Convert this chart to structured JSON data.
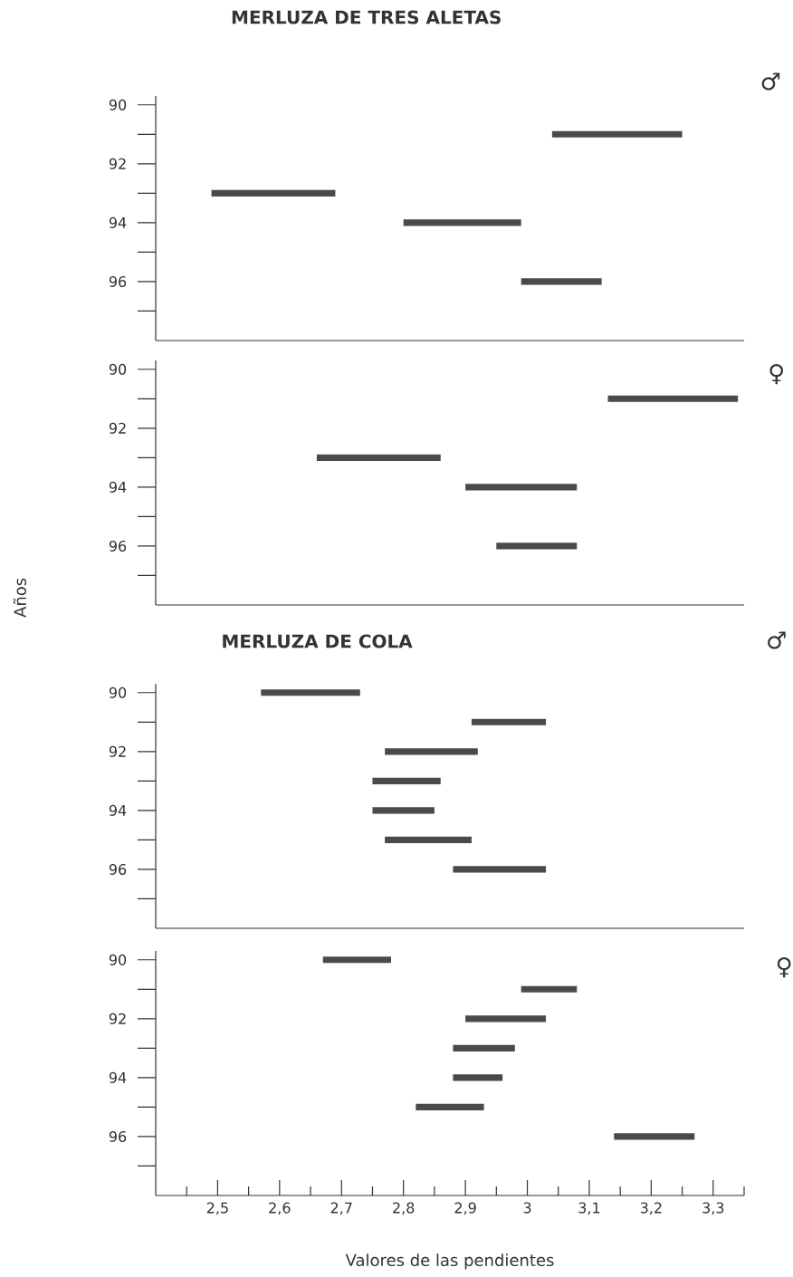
{
  "chart_data": [
    {
      "type": "bar",
      "orientation": "horizontal",
      "title": "MERLUZA DE TRES ALETAS",
      "categories": [
        "90",
        null,
        "92",
        null,
        "94",
        null,
        "96",
        null
      ],
      "base": [
        null,
        3.04,
        null,
        2.49,
        2.8,
        null,
        2.99,
        null
      ],
      "values": [
        null,
        0.21,
        null,
        0.2,
        0.19,
        null,
        0.13,
        null
      ],
      "color": "#4a4a4a",
      "xlim": [
        2.4,
        3.35
      ],
      "tick_labels": "y",
      "annotations": [
        "♂"
      ]
    },
    {
      "type": "bar",
      "orientation": "horizontal",
      "ylabel": "Años",
      "categories": [
        "90",
        null,
        "92",
        null,
        "94",
        null,
        "96",
        null
      ],
      "base": [
        null,
        3.13,
        null,
        2.66,
        2.9,
        null,
        2.95,
        null
      ],
      "values": [
        null,
        0.21,
        null,
        0.2,
        0.18,
        null,
        0.13,
        null
      ],
      "color": "#4a4a4a",
      "xlim": [
        2.4,
        3.35
      ],
      "tick_labels": "y",
      "annotations": [
        "♀"
      ]
    },
    {
      "type": "bar",
      "orientation": "horizontal",
      "title": "MERLUZA DE COLA",
      "categories": [
        "90",
        null,
        "92",
        null,
        "94",
        null,
        "96",
        null
      ],
      "base": [
        2.57,
        2.91,
        2.77,
        2.75,
        2.75,
        2.77,
        2.88,
        null
      ],
      "values": [
        0.16,
        0.12,
        0.15,
        0.11,
        0.1,
        0.14,
        0.15,
        null
      ],
      "color": "#4a4a4a",
      "xlim": [
        2.4,
        3.35
      ],
      "tick_labels": "y",
      "annotations": [
        "♂"
      ]
    },
    {
      "type": "bar",
      "orientation": "horizontal",
      "xlabel": "Valores de las pendientes",
      "categories": [
        "90",
        null,
        "92",
        null,
        "94",
        null,
        "96",
        null
      ],
      "base": [
        2.67,
        2.99,
        2.9,
        2.88,
        2.88,
        2.82,
        3.14,
        null
      ],
      "values": [
        0.11,
        0.09,
        0.13,
        0.1,
        0.08,
        0.11,
        0.13,
        null
      ],
      "color": "#4a4a4a",
      "xlim": [
        2.4,
        3.35
      ],
      "xticks": [
        {
          "value": 2.45,
          "label": null
        },
        {
          "value": 2.5,
          "label": "2,5"
        },
        {
          "value": 2.55,
          "label": null
        },
        {
          "value": 2.6,
          "label": "2,6"
        },
        {
          "value": 2.65,
          "label": null
        },
        {
          "value": 2.7,
          "label": "2,7"
        },
        {
          "value": 2.75,
          "label": null
        },
        {
          "value": 2.8,
          "label": "2,8"
        },
        {
          "value": 2.85,
          "label": null
        },
        {
          "value": 2.9,
          "label": "2,9"
        },
        {
          "value": 2.95,
          "label": null
        },
        {
          "value": 3,
          "label": "3"
        },
        {
          "value": 3.05,
          "label": null
        },
        {
          "value": 3.1,
          "label": "3,1"
        },
        {
          "value": 3.15,
          "label": null
        },
        {
          "value": 3.2,
          "label": "3,2"
        },
        {
          "value": 3.25,
          "label": null
        },
        {
          "value": 3.3,
          "label": "3,3"
        },
        {
          "value": 3.35,
          "label": null
        }
      ],
      "annotations": [
        "♀"
      ]
    }
  ]
}
